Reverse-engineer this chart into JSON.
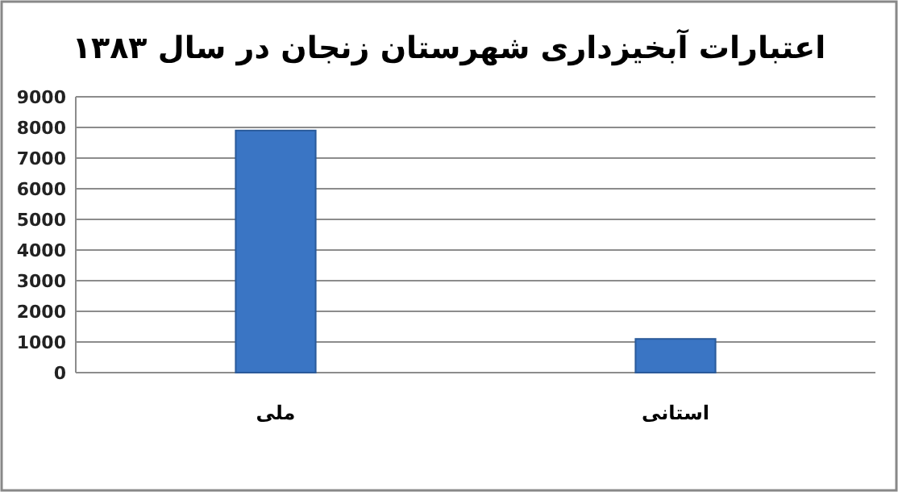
{
  "chart_data": {
    "type": "bar",
    "title": "اعتبارات آبخیزداری شهرستان زنجان در سال ۱۳۸۳",
    "categories": [
      "ملی",
      "استانی"
    ],
    "values": [
      7900,
      1100
    ],
    "color": "#3a75c4",
    "ylim": [
      0,
      9000
    ],
    "yticks": [
      0,
      1000,
      2000,
      3000,
      4000,
      5000,
      6000,
      7000,
      8000,
      9000
    ],
    "grid": "y"
  }
}
